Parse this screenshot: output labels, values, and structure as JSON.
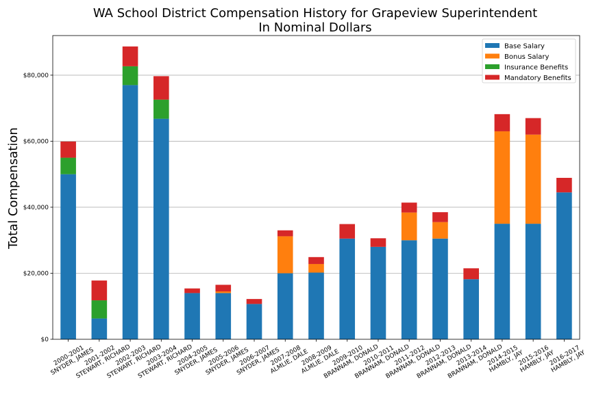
{
  "chart_data": {
    "type": "bar",
    "stacked": true,
    "title": "WA School District Compensation History for Grapeview Superintendent",
    "subtitle": "In Nominal Dollars",
    "xlabel": "",
    "ylabel": "Total Compensation",
    "ylim": [
      0,
      92000
    ],
    "yticks": [
      0,
      20000,
      40000,
      60000,
      80000
    ],
    "ytick_labels": [
      "$0",
      "$20,000",
      "$40,000",
      "$60,000",
      "$80,000"
    ],
    "grid": "horizontal",
    "legend_position": "top-right",
    "categories": [
      [
        "2000-2001",
        "SNYDER, JAMES"
      ],
      [
        "2001-2002",
        "STEWART, RICHARD"
      ],
      [
        "2002-2003",
        "STEWART, RICHARD"
      ],
      [
        "2003-2004",
        "STEWART, RICHARD"
      ],
      [
        "2004-2005",
        "SNYDER, JAMES"
      ],
      [
        "2005-2006",
        "SNYDER, JAMES"
      ],
      [
        "2006-2007",
        "SNYDER, JAMES"
      ],
      [
        "2007-2008",
        "ALMLIE, DALE"
      ],
      [
        "2008-2009",
        "ALMLIE, DALE"
      ],
      [
        "2009-2010",
        "BRANNAM, DONALD"
      ],
      [
        "2010-2011",
        "BRANNAM, DONALD"
      ],
      [
        "2011-2012",
        "BRANNAM, DONALD"
      ],
      [
        "2012-2013",
        "BRANNAM, DONALD"
      ],
      [
        "2013-2014",
        "BRANNAM, DONALD"
      ],
      [
        "2014-2015",
        "HAMBLY, JAY"
      ],
      [
        "2015-2016",
        "HAMBLY, JAY"
      ],
      [
        "2016-2017",
        "HAMBLY, JAY"
      ]
    ],
    "series": [
      {
        "name": "Base Salary",
        "color": "#1f77b4",
        "values": [
          50000,
          6300,
          77000,
          66800,
          14000,
          14000,
          10700,
          20000,
          20200,
          30500,
          28000,
          30000,
          30500,
          18200,
          35000,
          35000,
          44500
        ]
      },
      {
        "name": "Bonus Salary",
        "color": "#ff7f0e",
        "values": [
          0,
          0,
          0,
          0,
          0,
          500,
          0,
          11200,
          2600,
          0,
          0,
          8400,
          5000,
          0,
          28000,
          27000,
          0
        ]
      },
      {
        "name": "Insurance Benefits",
        "color": "#2ca02c",
        "values": [
          5000,
          5500,
          5700,
          5800,
          0,
          0,
          0,
          0,
          0,
          0,
          0,
          0,
          0,
          0,
          0,
          0,
          0
        ]
      },
      {
        "name": "Mandatory Benefits",
        "color": "#d62728",
        "values": [
          4900,
          6000,
          6000,
          7100,
          1400,
          2000,
          1500,
          1800,
          2100,
          4400,
          2600,
          3000,
          3000,
          3300,
          5200,
          5000,
          4400
        ]
      }
    ]
  }
}
